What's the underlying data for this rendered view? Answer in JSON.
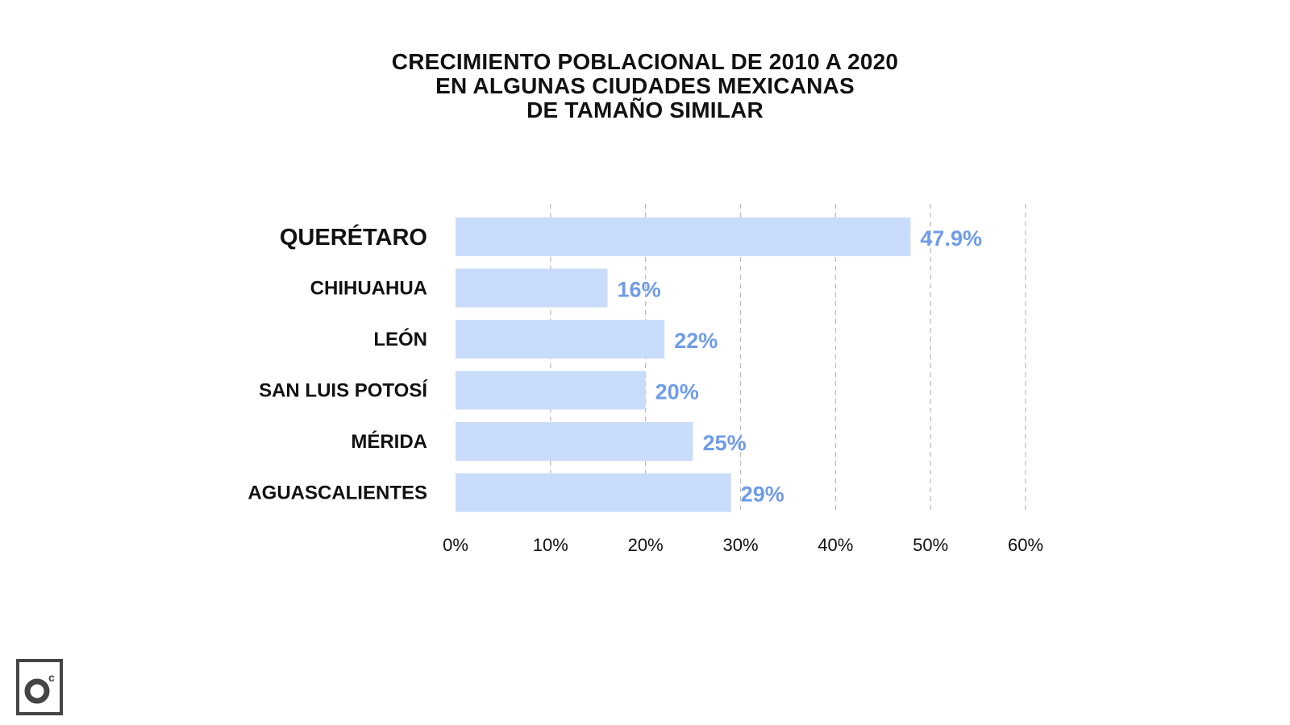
{
  "chart_data": {
    "type": "bar",
    "orientation": "horizontal",
    "title": [
      "CRECIMIENTO POBLACIONAL DE 2010 A 2020",
      "EN ALGUNAS CIUDADES MEXICANAS",
      "DE TAMAÑO SIMILAR"
    ],
    "categories": [
      "QUERÉTARO",
      "CHIHUAHUA",
      "LEÓN",
      "SAN LUIS POTOSÍ",
      "MÉRIDA",
      "AGUASCALIENTES"
    ],
    "values": [
      47.9,
      16,
      22,
      20,
      25,
      29
    ],
    "value_labels": [
      "47.9%",
      "16%",
      "22%",
      "20%",
      "25%",
      "29%"
    ],
    "highlighted_category": "QUERÉTARO",
    "xlim": [
      0,
      60
    ],
    "xticks": [
      0,
      10,
      20,
      30,
      40,
      50,
      60
    ],
    "xtick_labels": [
      "0%",
      "10%",
      "20%",
      "30%",
      "40%",
      "50%",
      "60%"
    ],
    "xlabel": "",
    "ylabel": "",
    "grid": "vertical-dashed",
    "colors": {
      "bar": "#c9dcfb",
      "value_text": "#6f9ce8",
      "grid": "#bdbdbd",
      "text": "#111111"
    }
  },
  "logo": {
    "name": "camera-logo-icon",
    "letter": "c"
  }
}
